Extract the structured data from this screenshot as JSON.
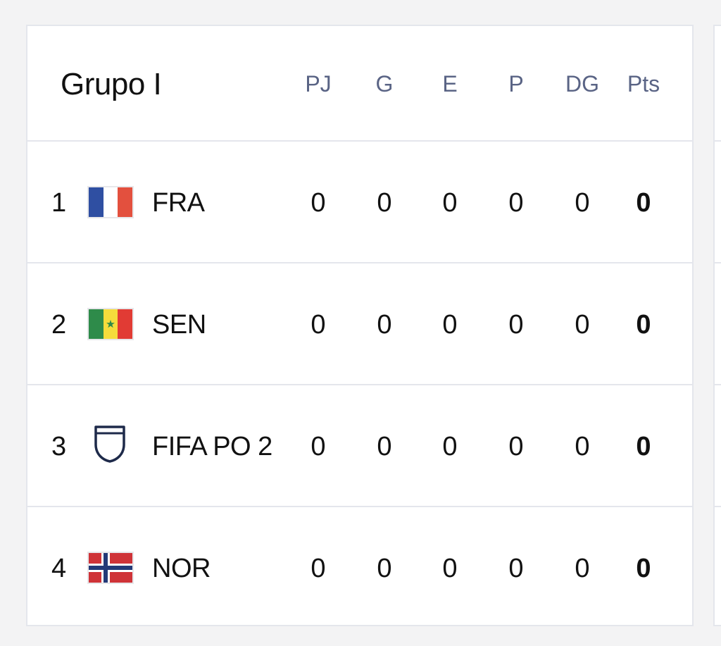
{
  "group": {
    "title": "Grupo I",
    "columns": [
      "PJ",
      "G",
      "E",
      "P",
      "DG",
      "Pts"
    ]
  },
  "rows": [
    {
      "pos": "1",
      "team": "FRA",
      "flag_icon": "france-flag-icon",
      "stats": [
        "0",
        "0",
        "0",
        "0",
        "0",
        "0"
      ]
    },
    {
      "pos": "2",
      "team": "SEN",
      "flag_icon": "senegal-flag-icon",
      "stats": [
        "0",
        "0",
        "0",
        "0",
        "0",
        "0"
      ]
    },
    {
      "pos": "3",
      "team": "FIFA PO 2",
      "flag_icon": "shield-placeholder-icon",
      "stats": [
        "0",
        "0",
        "0",
        "0",
        "0",
        "0"
      ]
    },
    {
      "pos": "4",
      "team": "NOR",
      "flag_icon": "norway-flag-icon",
      "stats": [
        "0",
        "0",
        "0",
        "0",
        "0",
        "0"
      ]
    }
  ],
  "colors": {
    "background": "#f3f3f4",
    "card": "#ffffff",
    "border": "#e4e6ec",
    "header_text": "#5a6485",
    "text": "#111111",
    "france_blue": "#2f4fa2",
    "france_red": "#e3503e",
    "senegal_green": "#2e8b4a",
    "senegal_yellow": "#f5dc3c",
    "senegal_red": "#e13b34",
    "norway_red": "#cf3338",
    "norway_blue": "#233a78",
    "shield_navy": "#1e2a4a"
  }
}
